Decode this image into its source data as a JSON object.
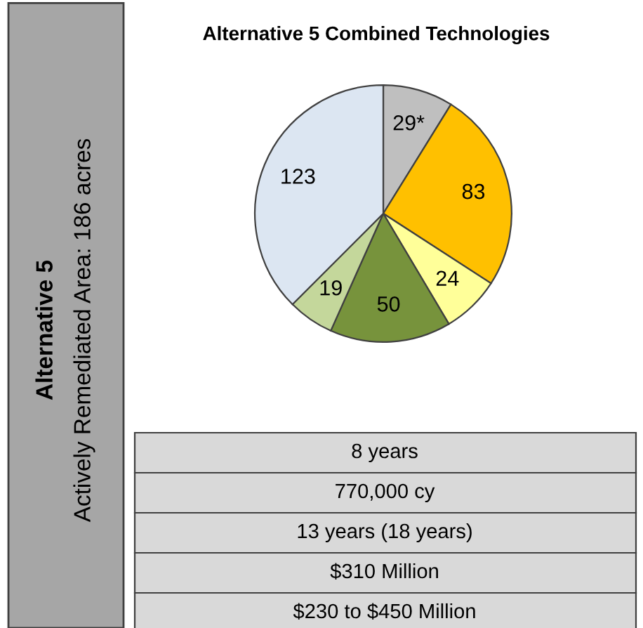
{
  "chart_data": {
    "type": "pie",
    "title": "Alternative 5 Combined Technologies",
    "categories": [
      null,
      null,
      null,
      null,
      null,
      null
    ],
    "values": [
      29,
      83,
      24,
      50,
      19,
      123
    ],
    "value_labels": [
      "29*",
      "83",
      "24",
      "50",
      "19",
      "123"
    ],
    "colors": [
      "#bfbfbf",
      "#ffc000",
      "#ffff99",
      "#77933c",
      "#c4d79b",
      "#dce6f2"
    ],
    "annotations": [
      "Alternative 5",
      "Actively Remediated Area: 186 acres",
      "8 years",
      "770,000 cy",
      "13 years (18 years)",
      "$310 Million",
      "$230 to $450 Million"
    ]
  }
}
